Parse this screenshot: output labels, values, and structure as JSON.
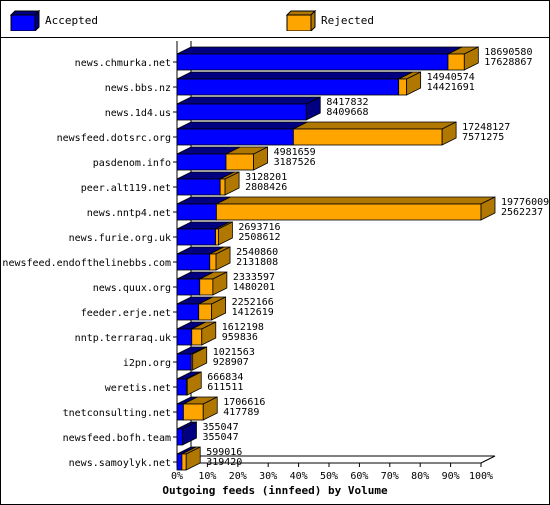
{
  "chart_data": {
    "type": "bar",
    "orientation": "horizontal",
    "stacked": true,
    "title": "Outgoing feeds (innfeed) by Volume",
    "xlim": [
      0,
      100
    ],
    "xticks": [
      "0%",
      "10%",
      "20%",
      "30%",
      "40%",
      "50%",
      "60%",
      "70%",
      "80%",
      "90%",
      "100%"
    ],
    "legend_position": "top",
    "series": [
      {
        "name": "Accepted",
        "color": "#0000ff"
      },
      {
        "name": "Rejected",
        "color": "#ffa500"
      }
    ],
    "categories": [
      "news.chmurka.net",
      "news.bbs.nz",
      "news.1d4.us",
      "newsfeed.dotsrc.org",
      "pasdenom.info",
      "peer.alt119.net",
      "news.nntp4.net",
      "news.furie.org.uk",
      "newsfeed.endofthelinebbs.com",
      "news.quux.org",
      "feeder.erje.net",
      "nntp.terraraq.uk",
      "i2pn.org",
      "weretis.net",
      "tnetconsulting.net",
      "newsfeed.bofh.team",
      "news.samoylyk.net"
    ],
    "offered_labels": [
      "18690580",
      "14940574",
      "8417832",
      "17248127",
      "4981659",
      "3128201",
      "19776009",
      "2693716",
      "2540860",
      "2333597",
      "2252166",
      "1612198",
      "1021563",
      "666834",
      "1706616",
      "355047",
      "599016"
    ],
    "accepted_labels": [
      "17628867",
      "14421691",
      "8409668",
      "7571275",
      "3187526",
      "2808426",
      "2562237",
      "2508612",
      "2131808",
      "1480201",
      "1412619",
      "959836",
      "928907",
      "611511",
      "417789",
      "355047",
      "319420"
    ],
    "accepted_pct": [
      89.14,
      72.92,
      42.52,
      38.28,
      16.12,
      14.2,
      12.96,
      12.68,
      10.78,
      7.48,
      7.14,
      4.85,
      4.7,
      3.09,
      2.11,
      1.8,
      1.62
    ],
    "rejected_pct": [
      5.37,
      2.62,
      0.04,
      48.93,
      9.07,
      1.62,
      87.04,
      0.94,
      2.07,
      4.32,
      4.25,
      3.3,
      0.47,
      0.28,
      6.52,
      0.0,
      1.41
    ]
  }
}
